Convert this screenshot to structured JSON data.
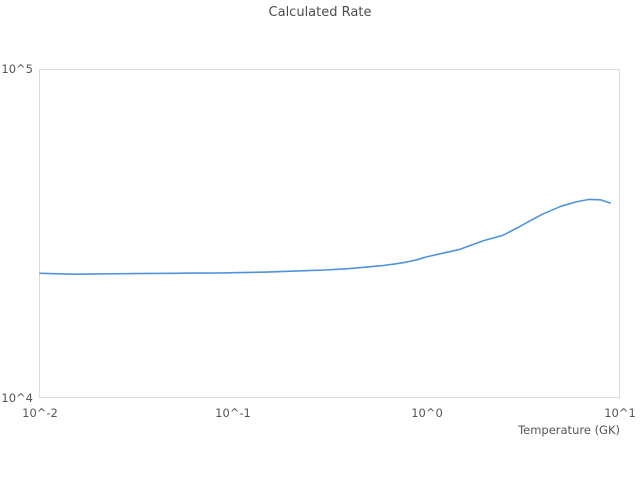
{
  "chart": {
    "title": "Calculated Rate",
    "xlabel": "Temperature (GK)",
    "xticks": [
      "10^-2",
      "10^-1",
      "10^0",
      "10^1"
    ],
    "yticks": [
      "10^5",
      "10^4"
    ]
  },
  "colors": {
    "line": "#4d94dd",
    "plot_border": "#dcdcdc",
    "title_text": "#4d4d4d",
    "tick_text": "#555555",
    "background": "#ffffff"
  },
  "chart_data": {
    "type": "line",
    "title": "Calculated Rate",
    "xlabel": "Temperature (GK)",
    "ylabel": "",
    "x_scale": "log",
    "y_scale": "log",
    "xlim": [
      0.01,
      10
    ],
    "ylim": [
      10000,
      100000
    ],
    "x_tick_labels": [
      "10^-2",
      "10^-1",
      "10^0",
      "10^1"
    ],
    "y_tick_labels": [
      "10^4",
      "10^5"
    ],
    "grid": false,
    "legend": "none",
    "line_color": "#4d94dd",
    "series": [
      {
        "name": "Calculated Rate",
        "x": [
          0.01,
          0.015,
          0.02,
          0.03,
          0.04,
          0.05,
          0.06,
          0.07,
          0.08,
          0.09,
          0.1,
          0.15,
          0.2,
          0.3,
          0.4,
          0.5,
          0.6,
          0.7,
          0.8,
          0.9,
          1.0,
          1.5,
          2.0,
          2.5,
          3.0,
          3.5,
          4.0,
          5.0,
          6.0,
          7.0,
          8.0,
          9.0
        ],
        "y": [
          23900,
          23750,
          23800,
          23850,
          23880,
          23900,
          23920,
          23930,
          23950,
          23960,
          23990,
          24100,
          24250,
          24450,
          24700,
          25000,
          25250,
          25550,
          25900,
          26300,
          26800,
          28300,
          30100,
          31200,
          33000,
          34700,
          36200,
          38300,
          39500,
          40200,
          40100,
          39200
        ]
      }
    ]
  }
}
